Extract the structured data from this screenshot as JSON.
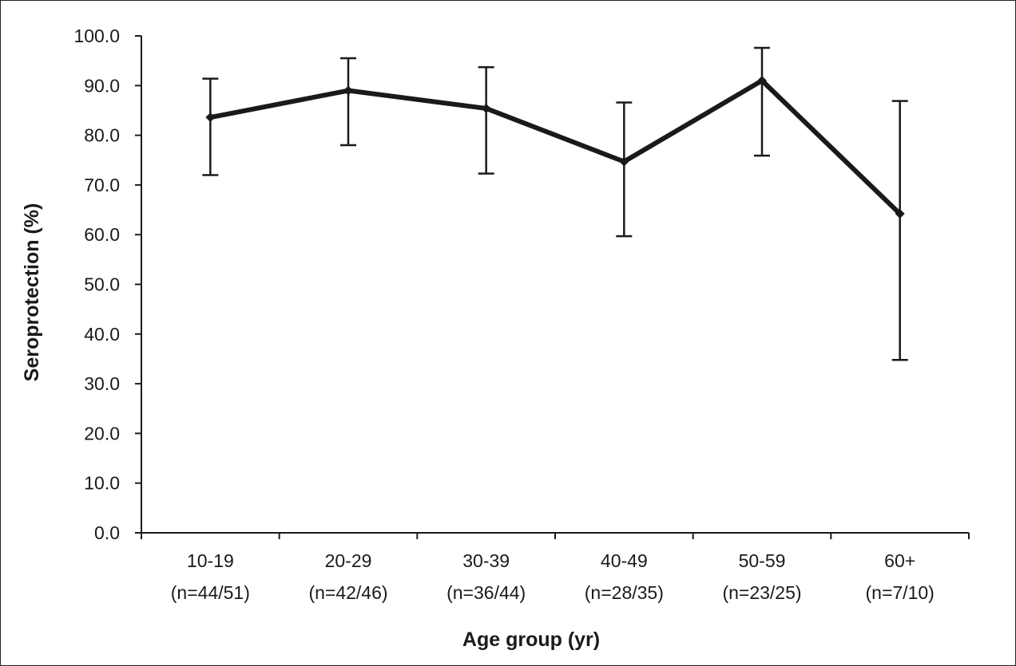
{
  "chart_data": {
    "type": "line",
    "title": "",
    "xlabel": "Age group (yr)",
    "ylabel": "Seroprotection (%)",
    "ylim": [
      0,
      100
    ],
    "yticks": [
      "0.0",
      "10.0",
      "20.0",
      "30.0",
      "40.0",
      "50.0",
      "60.0",
      "70.0",
      "80.0",
      "90.0",
      "100.0"
    ],
    "categories": [
      {
        "name": "10-19",
        "n": "(n=44/51)"
      },
      {
        "name": "20-29",
        "n": "(n=42/46)"
      },
      {
        "name": "30-39",
        "n": "(n=36/44)"
      },
      {
        "name": "40-49",
        "n": "(n=28/35)"
      },
      {
        "name": "50-59",
        "n": "(n=23/25)"
      },
      {
        "name": "60+",
        "n": "(n=7/10)"
      }
    ],
    "series": [
      {
        "values": [
          83.6,
          89.0,
          85.4,
          74.7,
          91.0,
          64.2
        ],
        "error_low": [
          72.0,
          78.0,
          72.3,
          59.7,
          75.9,
          34.8
        ],
        "error_high": [
          91.4,
          95.5,
          93.7,
          86.6,
          97.6,
          86.9
        ],
        "color": "#1a1a1a",
        "marker": "diamond"
      }
    ],
    "grid": false,
    "legend": "none"
  }
}
